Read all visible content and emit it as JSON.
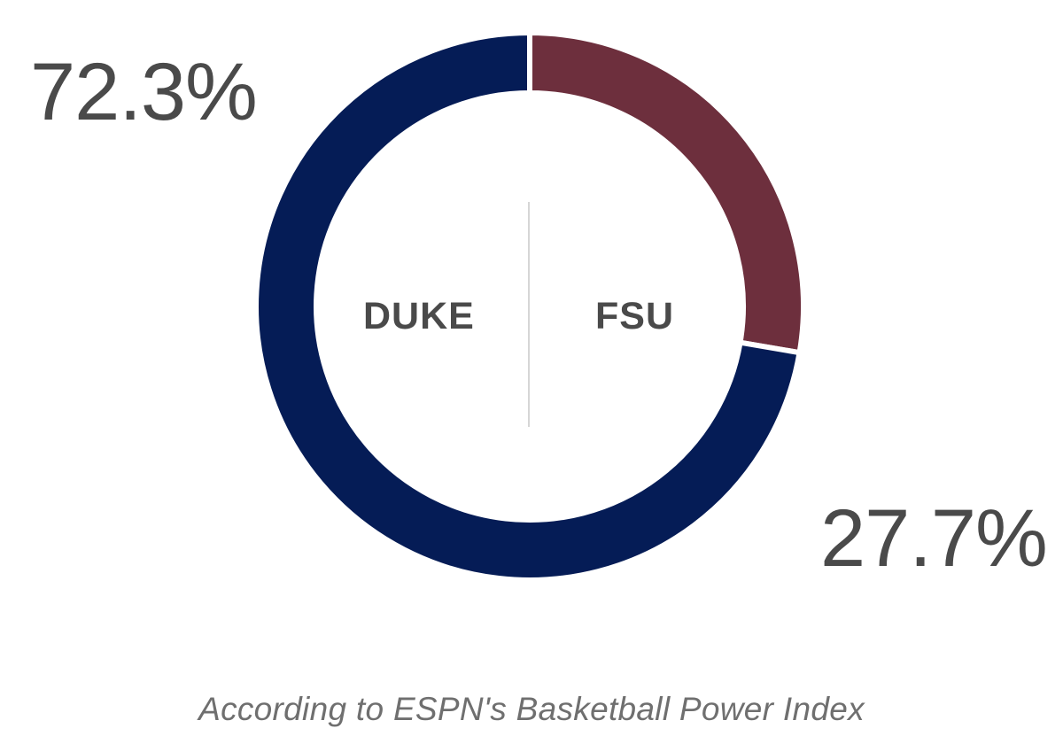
{
  "chart_data": {
    "type": "pie",
    "variant": "donut",
    "slices": [
      {
        "label": "DUKE",
        "value": 72.3,
        "value_label": "72.3%",
        "color": "#051c56"
      },
      {
        "label": "FSU",
        "value": 27.7,
        "value_label": "27.7%",
        "color": "#6d2f3d"
      }
    ],
    "caption": "According to ESPN's Basketball Power Index"
  }
}
